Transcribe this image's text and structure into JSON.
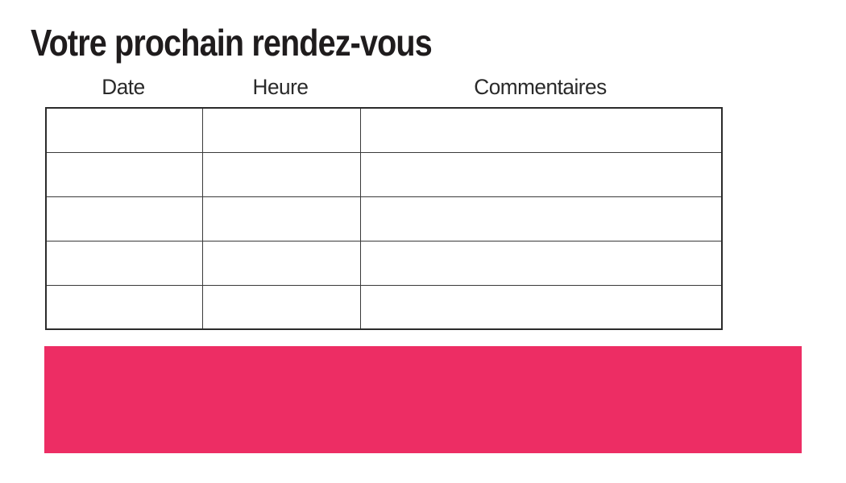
{
  "title": "Votre prochain rendez-vous",
  "table": {
    "headers": [
      "Date",
      "Heure",
      "Commentaires"
    ],
    "rows": [
      [
        "",
        "",
        ""
      ],
      [
        "",
        "",
        ""
      ],
      [
        "",
        "",
        ""
      ],
      [
        "",
        "",
        ""
      ],
      [
        "",
        "",
        ""
      ]
    ]
  },
  "banner": {
    "color": "#ED2D64"
  }
}
